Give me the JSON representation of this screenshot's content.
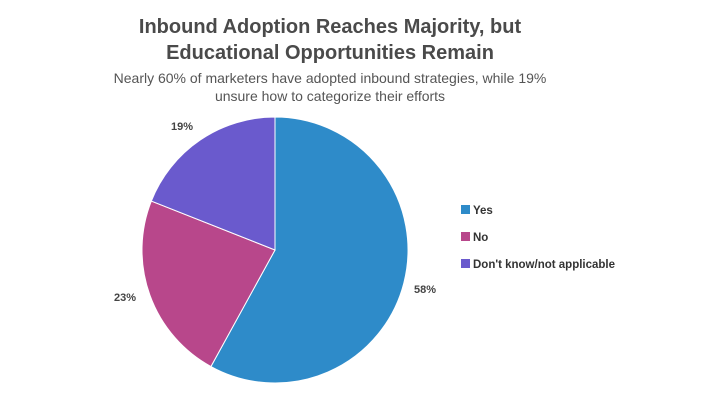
{
  "title_line1": "Inbound Adoption Reaches Majority, but",
  "title_line2": "Educational Opportunities Remain",
  "subtitle_line1": "Nearly 60% of marketers have adopted inbound strategies, while 19%",
  "subtitle_line2": "unsure how to categorize their efforts",
  "chart_data": {
    "type": "pie",
    "title": "Inbound Adoption Reaches Majority, but Educational Opportunities Remain",
    "subtitle": "Nearly 60% of marketers have adopted inbound strategies, while 19% unsure how to categorize their efforts",
    "categories": [
      "Yes",
      "No",
      "Don't know/not applicable"
    ],
    "values": [
      58,
      23,
      19
    ],
    "labels": [
      "58%",
      "23%",
      "19%"
    ],
    "colors": [
      "#2e8bc9",
      "#b8478b",
      "#6a5acd"
    ],
    "legend_position": "right"
  }
}
